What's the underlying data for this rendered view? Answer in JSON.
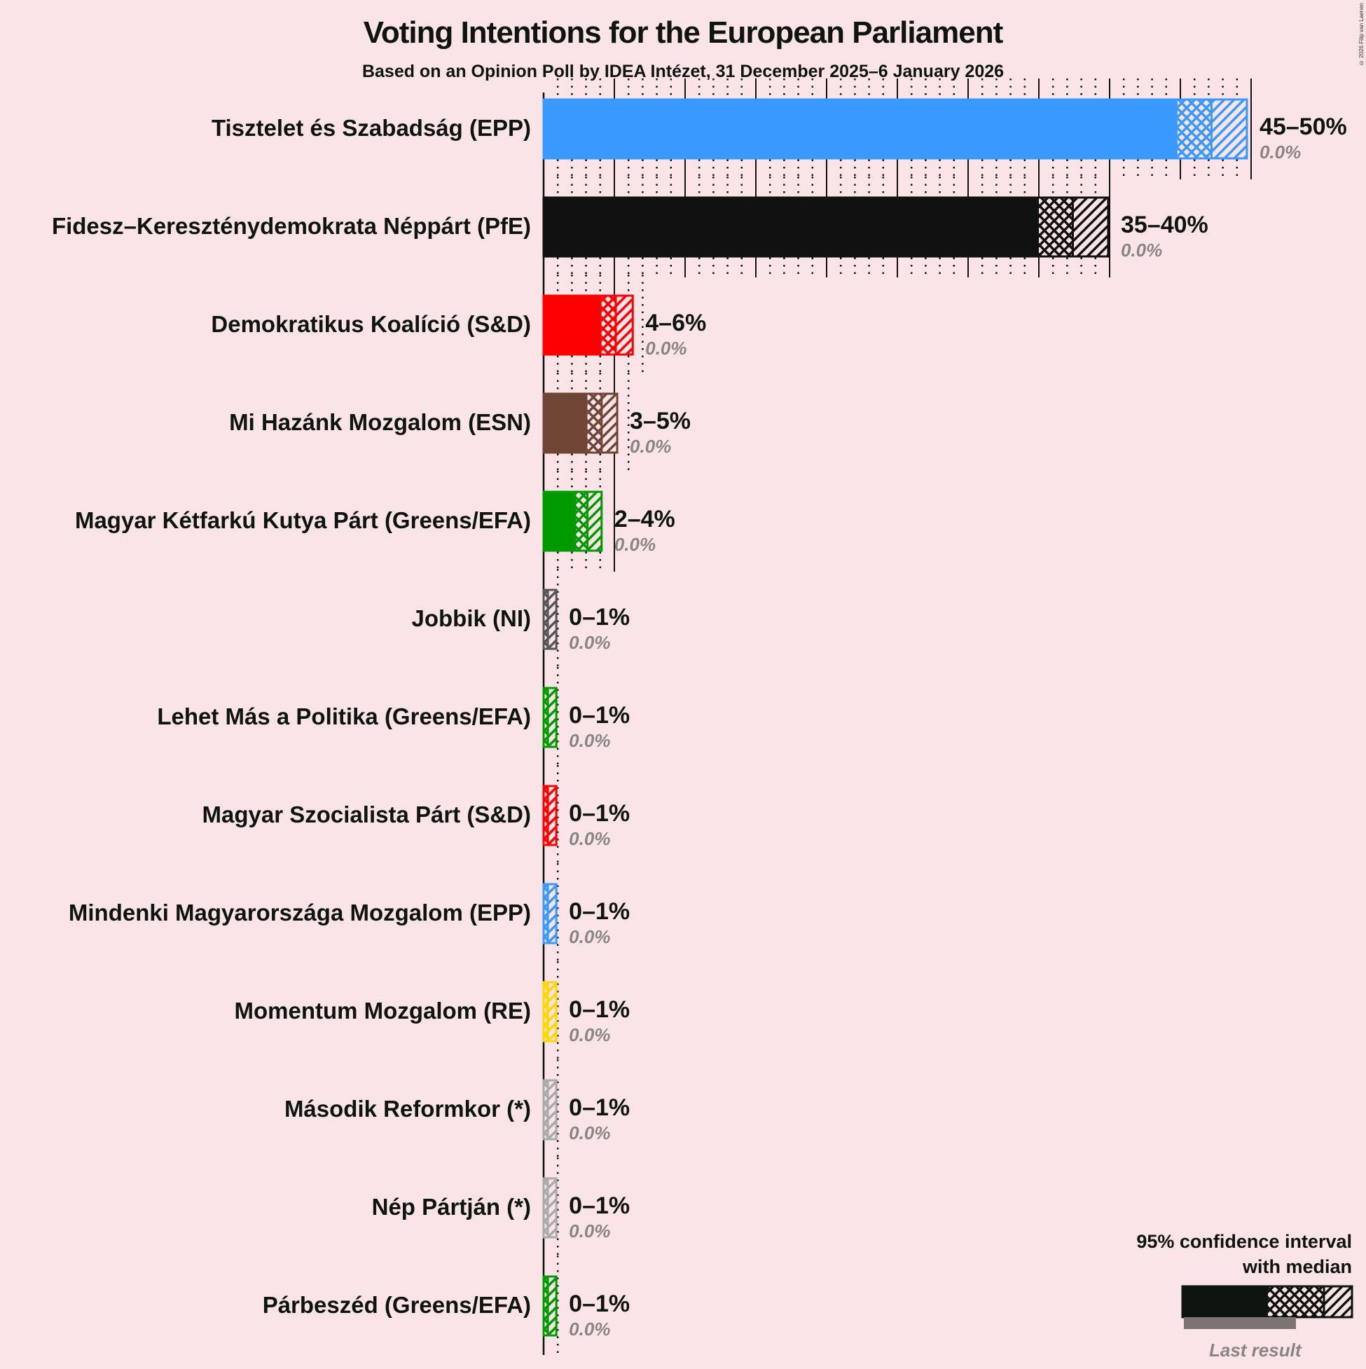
{
  "header": {
    "title": "Voting Intentions for the European Parliament",
    "subtitle": "Based on an Opinion Poll by IDEA Intézet, 31 December 2025–6 January 2026",
    "copyright": "© 2026 Filip van Laenen"
  },
  "legend": {
    "title_line1": "95% confidence interval",
    "title_line2": "with median",
    "last_result": "Last result"
  },
  "chart_data": {
    "type": "bar",
    "orientation": "horizontal",
    "title": "Voting Intentions for the European Parliament",
    "subtitle": "Based on an Opinion Poll by IDEA Intézet, 31 December 2025–6 January 2026",
    "xlabel": "",
    "ylabel": "",
    "xlim": [
      0,
      50
    ],
    "grid": "vertical lines every 1%, solid every 5%",
    "legend_position": "bottom-right",
    "categories": [
      "Tisztelet és Szabadság (EPP)",
      "Fidesz–Kereszténydemokrata Néppárt (PfE)",
      "Demokratikus Koalíció (S&D)",
      "Mi Hazánk Mozgalom (ESN)",
      "Magyar Kétfarkú Kutya Párt (Greens/EFA)",
      "Jobbik (NI)",
      "Lehet Más a Politika (Greens/EFA)",
      "Magyar Szocialista Párt (S&D)",
      "Mindenki Magyarországa Mozgalom (EPP)",
      "Momentum Mozgalom (RE)",
      "Második Reformkor (*)",
      "Nép Pártján (*)",
      "Párbeszéd (Greens/EFA)"
    ],
    "series": [
      {
        "name": "CI low",
        "values": [
          44.8,
          35.0,
          4.1,
          3.1,
          2.3,
          0.0,
          0.0,
          0.0,
          0.0,
          0.0,
          0.0,
          0.0,
          0.0
        ]
      },
      {
        "name": "Median",
        "values": [
          47.2,
          37.4,
          5.1,
          4.1,
          3.1,
          0.3,
          0.3,
          0.3,
          0.3,
          0.3,
          0.3,
          0.3,
          0.3
        ]
      },
      {
        "name": "CI high",
        "values": [
          49.7,
          39.9,
          6.3,
          5.2,
          4.1,
          0.9,
          0.9,
          0.9,
          0.9,
          0.9,
          0.9,
          0.9,
          0.9
        ]
      },
      {
        "name": "Last result",
        "values": [
          0.0,
          0.0,
          0.0,
          0.0,
          0.0,
          0.0,
          0.0,
          0.0,
          0.0,
          0.0,
          0.0,
          0.0,
          0.0
        ]
      }
    ],
    "range_labels": [
      "45–50%",
      "35–40%",
      "4–6%",
      "3–5%",
      "2–4%",
      "0–1%",
      "0–1%",
      "0–1%",
      "0–1%",
      "0–1%",
      "0–1%",
      "0–1%",
      "0–1%"
    ],
    "last_result_labels": [
      "0.0%",
      "0.0%",
      "0.0%",
      "0.0%",
      "0.0%",
      "0.0%",
      "0.0%",
      "0.0%",
      "0.0%",
      "0.0%",
      "0.0%",
      "0.0%",
      "0.0%"
    ],
    "colors": [
      "#3a99ff",
      "#111111",
      "#ff0000",
      "#6f4536",
      "#009900",
      "#555555",
      "#009900",
      "#ff0000",
      "#3a99ff",
      "#ffd700",
      "#aaaaaa",
      "#aaaaaa",
      "#009900"
    ]
  }
}
